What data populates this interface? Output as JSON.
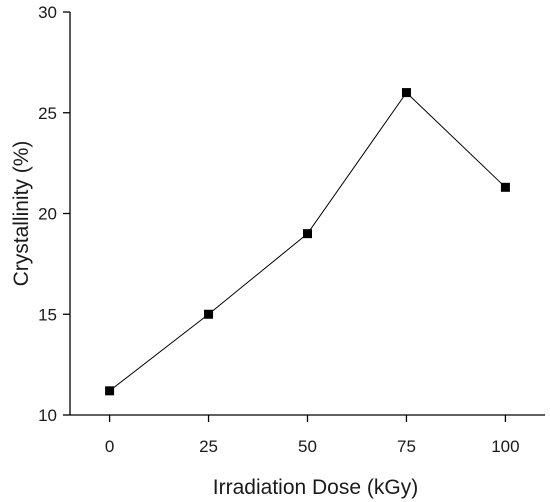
{
  "chart_data": {
    "type": "line",
    "title": "",
    "xlabel": "Irradiation Dose (kGy)",
    "ylabel": "Crystallinity (%)",
    "x": [
      0,
      25,
      50,
      75,
      100
    ],
    "series": [
      {
        "values": [
          11.2,
          15,
          19,
          26,
          21.3
        ]
      }
    ],
    "xlim": [
      -10,
      110
    ],
    "ylim": [
      10,
      30
    ],
    "xticks": [
      0,
      25,
      50,
      75,
      100
    ],
    "yticks": [
      10,
      15,
      20,
      25,
      30
    ],
    "grid": false,
    "marker": "square",
    "line_color": "#000000"
  }
}
